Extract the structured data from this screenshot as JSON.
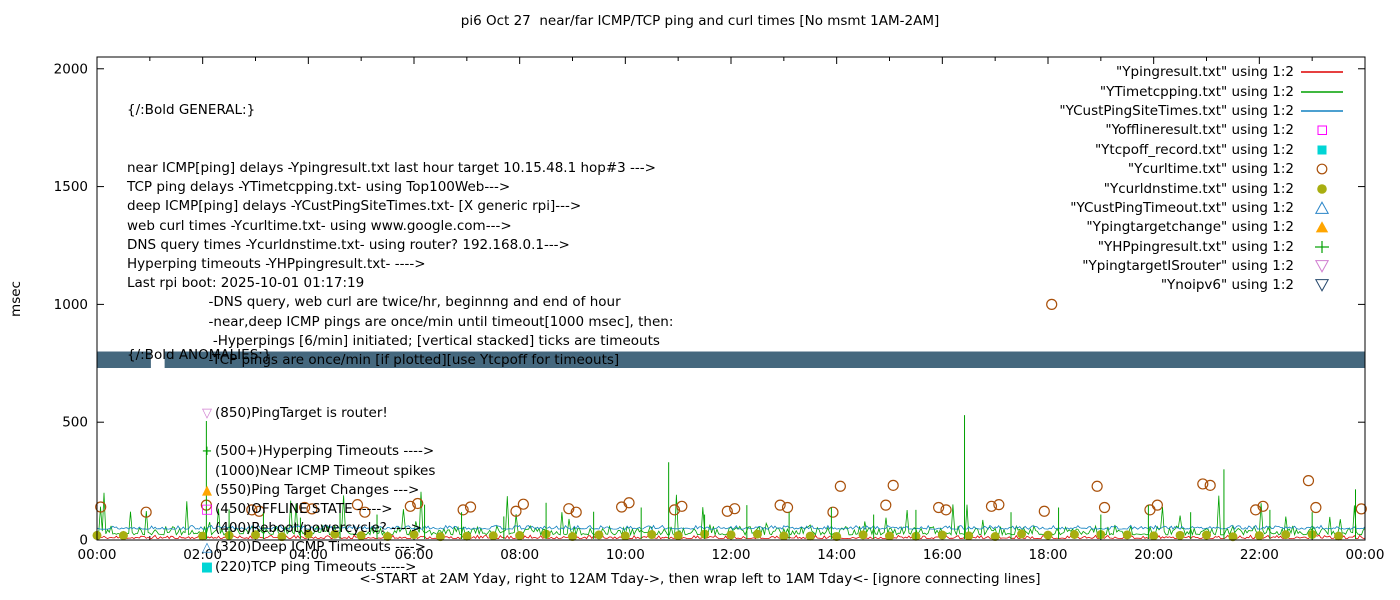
{
  "chart_data": {
    "type": "line",
    "title": "pi6 Oct 27  near/far ICMP/TCP ping and curl times [No msmt 1AM-2AM]",
    "xlabel": "<-START at 2AM Yday, right to 12AM Tday->, then wrap left to 1AM Tday<- [ignore connecting lines]",
    "ylabel": "msec",
    "ylim": [
      0,
      2050
    ],
    "xlim_hours": [
      0,
      24
    ],
    "grid": false,
    "legend_position": "top-right",
    "yticks": [
      {
        "v": 0,
        "label": "0"
      },
      {
        "v": 500,
        "label": "500"
      },
      {
        "v": 1000,
        "label": "1000"
      },
      {
        "v": 1500,
        "label": "1500"
      },
      {
        "v": 2000,
        "label": "2000"
      }
    ],
    "xticks": [
      {
        "h": 0,
        "label": "00:00"
      },
      {
        "h": 2,
        "label": "02:00"
      },
      {
        "h": 4,
        "label": "04:00"
      },
      {
        "h": 6,
        "label": "06:00"
      },
      {
        "h": 8,
        "label": "08:00"
      },
      {
        "h": 10,
        "label": "10:00"
      },
      {
        "h": 12,
        "label": "12:00"
      },
      {
        "h": 14,
        "label": "14:00"
      },
      {
        "h": 16,
        "label": "16:00"
      },
      {
        "h": 18,
        "label": "18:00"
      },
      {
        "h": 20,
        "label": "20:00"
      },
      {
        "h": 22,
        "label": "22:00"
      },
      {
        "h": 24,
        "label": "00:00"
      }
    ],
    "minor_xtick_hours": 1,
    "series": [
      {
        "id": "near-icmp",
        "legend_label": "\"Ypingresult.txt\" using 1:2",
        "style": "line",
        "color": "#dd0000",
        "noise": {
          "seed": 11,
          "base": 6,
          "amp": 14
        }
      },
      {
        "id": "tcp-ping",
        "legend_label": "\"YTimetcpping.txt\" using 1:2",
        "style": "line",
        "color": "#00a000",
        "noise": {
          "seed": 12,
          "base": 22,
          "amp": 38,
          "spike_chance": 0.05,
          "spike_amp": 170
        }
      },
      {
        "id": "deep-icmp",
        "legend_label": "\"YCustPingSiteTimes.txt\" using 1:2",
        "style": "line",
        "color": "#1080c0",
        "noise": {
          "seed": 13,
          "base": 46,
          "amp": 16
        }
      },
      {
        "id": "offline",
        "legend_label": "\"Yofflineresult.txt\" using 1:2",
        "style": "square-open",
        "color": "#ff00ff",
        "points": []
      },
      {
        "id": "tcpoff",
        "legend_label": "\"Ytcpoff_record.txt\" using 1:2",
        "style": "square-filled",
        "color": "#00d5d5",
        "points": []
      },
      {
        "id": "curl",
        "legend_label": "\"Ycurltime.txt\" using 1:2",
        "style": "circle-open",
        "color": "#a9500a",
        "points": [
          [
            0.07,
            140
          ],
          [
            0.93,
            118
          ],
          [
            2.07,
            148
          ],
          [
            2.93,
            128
          ],
          [
            3.07,
            122
          ],
          [
            3.93,
            138
          ],
          [
            4.07,
            132
          ],
          [
            4.93,
            150
          ],
          [
            5.07,
            118
          ],
          [
            5.93,
            143
          ],
          [
            6.07,
            155
          ],
          [
            6.93,
            128
          ],
          [
            7.07,
            140
          ],
          [
            7.93,
            122
          ],
          [
            8.07,
            152
          ],
          [
            8.93,
            133
          ],
          [
            9.07,
            118
          ],
          [
            9.93,
            140
          ],
          [
            10.07,
            158
          ],
          [
            10.93,
            128
          ],
          [
            11.07,
            143
          ],
          [
            11.93,
            122
          ],
          [
            12.07,
            133
          ],
          [
            12.93,
            148
          ],
          [
            13.07,
            138
          ],
          [
            13.93,
            118
          ],
          [
            14.07,
            228
          ],
          [
            14.93,
            148
          ],
          [
            15.07,
            232
          ],
          [
            15.93,
            138
          ],
          [
            16.07,
            128
          ],
          [
            16.93,
            143
          ],
          [
            17.07,
            150
          ],
          [
            17.93,
            122
          ],
          [
            18.07,
            1000
          ],
          [
            18.93,
            228
          ],
          [
            19.07,
            138
          ],
          [
            19.93,
            128
          ],
          [
            20.07,
            148
          ],
          [
            20.93,
            238
          ],
          [
            21.07,
            232
          ],
          [
            21.93,
            128
          ],
          [
            22.07,
            143
          ],
          [
            22.93,
            252
          ],
          [
            23.07,
            138
          ],
          [
            23.93,
            132
          ]
        ]
      },
      {
        "id": "dns",
        "legend_label": "\"Ycurldnstime.txt\" using 1:2",
        "style": "circle-filled",
        "color": "#a8ae10",
        "auto_points": {
          "seed": 14,
          "start": 0,
          "end": 23.5,
          "step": 0.5,
          "min": 14,
          "max": 26,
          "skip": [
            1,
            2
          ]
        }
      },
      {
        "id": "custping-timeout",
        "legend_label": "\"YCustPingTimeout.txt\" using 1:2",
        "style": "triangle-open",
        "color": "#2a85c8",
        "points": []
      },
      {
        "id": "pingtargetchange",
        "legend_label": "\"Ypingtargetchange\" using 1:2",
        "style": "triangle-filled",
        "color": "#ffa500",
        "points": []
      },
      {
        "id": "hp-ping",
        "legend_label": "\"YHPpingresult.txt\" using 1:2",
        "style": "plus",
        "color": "#00a000",
        "impulses": [
          [
            2.07,
            505
          ],
          [
            2.5,
            130
          ],
          [
            3.15,
            118
          ],
          [
            3.85,
            95
          ],
          [
            4.6,
            140
          ],
          [
            5.3,
            108
          ],
          [
            6.2,
            150
          ],
          [
            6.9,
            118
          ],
          [
            7.7,
            100
          ],
          [
            8.5,
            158
          ],
          [
            9.4,
            120
          ],
          [
            10.3,
            138
          ],
          [
            10.82,
            330
          ],
          [
            11.5,
            108
          ],
          [
            12.3,
            148
          ],
          [
            13.1,
            118
          ],
          [
            13.9,
            138
          ],
          [
            14.7,
            108
          ],
          [
            15.5,
            128
          ],
          [
            16.42,
            530
          ],
          [
            17.3,
            118
          ],
          [
            18.2,
            138
          ],
          [
            19.0,
            108
          ],
          [
            19.9,
            148
          ],
          [
            20.7,
            118
          ],
          [
            21.33,
            300
          ],
          [
            22.2,
            128
          ],
          [
            23.0,
            118
          ],
          [
            23.82,
            215
          ]
        ]
      },
      {
        "id": "pingtarget-isrouter",
        "legend_label": "\"YpingtargetISrouter\" using 1:2",
        "style": "tri-down-open",
        "color": "#d17fd1",
        "points": []
      },
      {
        "id": "noipv6",
        "legend_label": "\"Ynoipv6\" using 1:2",
        "style": "tri-down-open",
        "color": "#27496d",
        "band": {
          "v0": 730,
          "v1": 800,
          "color": "#45687e",
          "segments": [
            [
              0,
              1.02
            ],
            [
              1.28,
              24
            ]
          ]
        }
      }
    ]
  },
  "annotations": {
    "general": {
      "heading": "{/:Bold GENERAL:}",
      "lines": [
        "near ICMP[ping] delays -Ypingresult.txt last hour target 10.15.48.1 hop#3 --->",
        "TCP ping delays -YTimetcpping.txt- using Top100Web--->",
        "deep ICMP[ping] delays -YCustPingSiteTimes.txt- [X generic rpi]--->",
        "web curl times -Ycurltime.txt- using www.google.com--->",
        "DNS query times -Ycurldnstime.txt- using router? 192.168.0.1--->",
        "Hyperping timeouts -YHPpingresult.txt- ---->",
        "Last rpi boot: 2025-10-01 01:17:19",
        "                   -DNS query, web curl are twice/hr, beginnng and end of hour",
        "                   -near,deep ICMP pings are once/min until timeout[1000 msec], then:",
        "                    -Hyperpings [6/min] initiated; [vertical stacked] ticks are timeouts",
        "                   -TCP pings are once/min [if plotted][use Ytcpoff for timeouts]"
      ]
    },
    "anomalies": {
      "heading": "{/:Bold ANOMALIES:}",
      "items": [
        {
          "marker": "▽",
          "color": "#d17fd1",
          "text": "(850)PingTarget is router!"
        },
        {
          "marker": "",
          "color": "",
          "text": "",
          "obscured_by_band": true
        },
        {
          "marker": "+",
          "color": "#00a000",
          "text": "(500+)Hyperping Timeouts ---->"
        },
        {
          "marker": "",
          "color": "",
          "text": "(1000)Near ICMP Timeout spikes"
        },
        {
          "marker": "▲",
          "color": "#ffa500",
          "text": "(550)Ping Target Changes --->"
        },
        {
          "marker": "□",
          "color": "#ff00ff",
          "text": "(450)OFFLINE STATE ----->"
        },
        {
          "marker": "",
          "color": "",
          "text": "(400)Reboot/powercycle? ---->"
        },
        {
          "marker": "△",
          "color": "#2a85c8",
          "text": "(320)Deep ICMP Timeouts ---->"
        },
        {
          "marker": "■",
          "color": "#00d5d5",
          "text": "(220)TCP ping Timeouts ----->"
        }
      ]
    }
  }
}
